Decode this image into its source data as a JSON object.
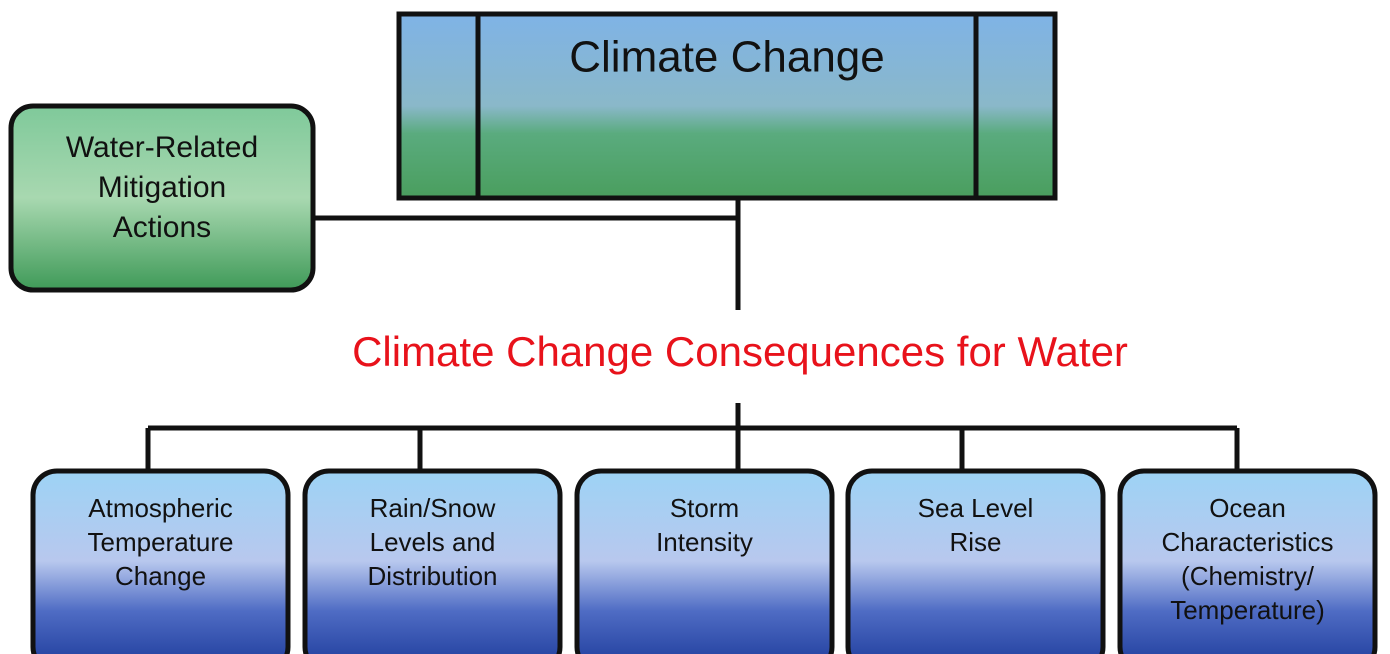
{
  "title": {
    "lines": [
      "Climate Change"
    ]
  },
  "mitigation": {
    "lines": [
      "Water-Related",
      "Mitigation",
      "Actions"
    ]
  },
  "consequences_heading": "Climate Change Consequences for Water",
  "consequences": [
    {
      "lines": [
        "Atmospheric",
        "Temperature",
        "Change"
      ]
    },
    {
      "lines": [
        "Rain/Snow",
        "Levels and",
        "Distribution"
      ]
    },
    {
      "lines": [
        "Storm",
        "Intensity"
      ]
    },
    {
      "lines": [
        "Sea Level",
        "Rise"
      ]
    },
    {
      "lines": [
        "Ocean",
        "Characteristics",
        "(Chemistry/",
        "Temperature)"
      ]
    }
  ]
}
